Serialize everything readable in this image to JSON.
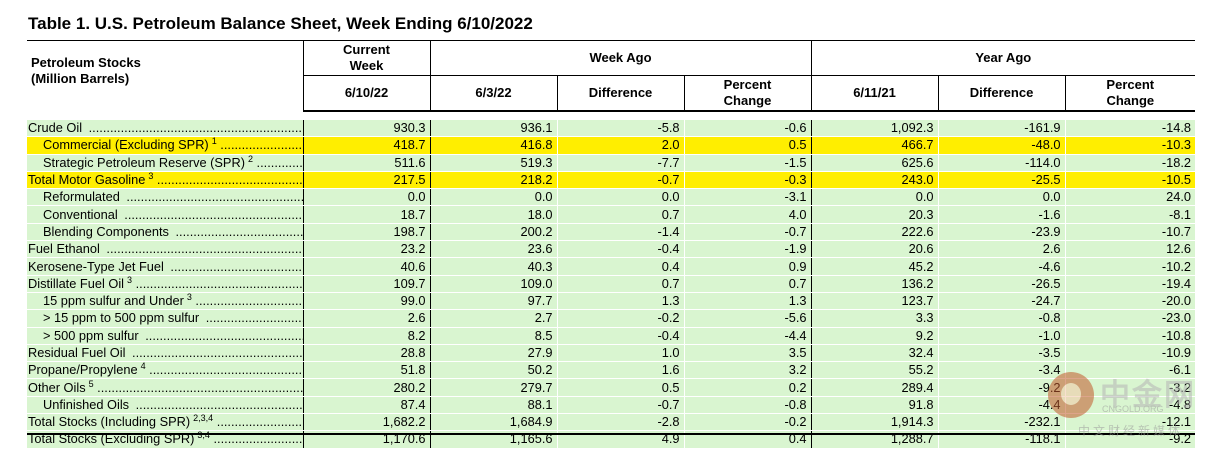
{
  "title": "Table 1.  U.S. Petroleum Balance Sheet, Week Ending 6/10/2022",
  "header": {
    "stub_line1": "Petroleum Stocks",
    "stub_line2": "(Million Barrels)",
    "current_week_line1": "Current",
    "current_week_line2": "Week",
    "current_week_date": "6/10/22",
    "week_ago": "Week Ago",
    "week_ago_date": "6/3/22",
    "difference": "Difference",
    "percent_line1": "Percent",
    "percent_line2": "Change",
    "year_ago": "Year Ago",
    "year_ago_date": "6/11/21"
  },
  "rows": [
    {
      "label": "Crude Oil",
      "sup": "",
      "indent": 0,
      "highlight": false,
      "values": [
        "930.3",
        "936.1",
        "-5.8",
        "-0.6",
        "1,092.3",
        "-161.9",
        "-14.8"
      ]
    },
    {
      "label": "Commercial (Excluding SPR)",
      "sup": "1",
      "indent": 1,
      "highlight": true,
      "values": [
        "418.7",
        "416.8",
        "2.0",
        "0.5",
        "466.7",
        "-48.0",
        "-10.3"
      ]
    },
    {
      "label": "Strategic Petroleum Reserve (SPR)",
      "sup": "2",
      "indent": 1,
      "highlight": false,
      "values": [
        "511.6",
        "519.3",
        "-7.7",
        "-1.5",
        "625.6",
        "-114.0",
        "-18.2"
      ]
    },
    {
      "label": "Total Motor Gasoline",
      "sup": "3",
      "indent": 0,
      "highlight": true,
      "values": [
        "217.5",
        "218.2",
        "-0.7",
        "-0.3",
        "243.0",
        "-25.5",
        "-10.5"
      ]
    },
    {
      "label": "Reformulated",
      "sup": "",
      "indent": 1,
      "highlight": false,
      "values": [
        "0.0",
        "0.0",
        "0.0",
        "-3.1",
        "0.0",
        "0.0",
        "24.0"
      ]
    },
    {
      "label": "Conventional",
      "sup": "",
      "indent": 1,
      "highlight": false,
      "values": [
        "18.7",
        "18.0",
        "0.7",
        "4.0",
        "20.3",
        "-1.6",
        "-8.1"
      ]
    },
    {
      "label": "Blending Components",
      "sup": "",
      "indent": 1,
      "highlight": false,
      "values": [
        "198.7",
        "200.2",
        "-1.4",
        "-0.7",
        "222.6",
        "-23.9",
        "-10.7"
      ]
    },
    {
      "label": "Fuel Ethanol",
      "sup": "",
      "indent": 0,
      "highlight": false,
      "values": [
        "23.2",
        "23.6",
        "-0.4",
        "-1.9",
        "20.6",
        "2.6",
        "12.6"
      ]
    },
    {
      "label": "Kerosene-Type Jet Fuel",
      "sup": "",
      "indent": 0,
      "highlight": false,
      "values": [
        "40.6",
        "40.3",
        "0.4",
        "0.9",
        "45.2",
        "-4.6",
        "-10.2"
      ]
    },
    {
      "label": "Distillate Fuel Oil",
      "sup": "3",
      "indent": 0,
      "highlight": false,
      "values": [
        "109.7",
        "109.0",
        "0.7",
        "0.7",
        "136.2",
        "-26.5",
        "-19.4"
      ]
    },
    {
      "label": "15 ppm sulfur and Under",
      "sup": "3",
      "indent": 1,
      "highlight": false,
      "values": [
        "99.0",
        "97.7",
        "1.3",
        "1.3",
        "123.7",
        "-24.7",
        "-20.0"
      ]
    },
    {
      "label": "> 15 ppm to 500 ppm sulfur",
      "sup": "",
      "indent": 1,
      "highlight": false,
      "values": [
        "2.6",
        "2.7",
        "-0.2",
        "-5.6",
        "3.3",
        "-0.8",
        "-23.0"
      ]
    },
    {
      "label": "> 500 ppm sulfur",
      "sup": "",
      "indent": 1,
      "highlight": false,
      "values": [
        "8.2",
        "8.5",
        "-0.4",
        "-4.4",
        "9.2",
        "-1.0",
        "-10.8"
      ]
    },
    {
      "label": "Residual Fuel Oil",
      "sup": "",
      "indent": 0,
      "highlight": false,
      "values": [
        "28.8",
        "27.9",
        "1.0",
        "3.5",
        "32.4",
        "-3.5",
        "-10.9"
      ]
    },
    {
      "label": "Propane/Propylene",
      "sup": "4",
      "indent": 0,
      "highlight": false,
      "values": [
        "51.8",
        "50.2",
        "1.6",
        "3.2",
        "55.2",
        "-3.4",
        "-6.1"
      ]
    },
    {
      "label": "Other Oils",
      "sup": "5",
      "indent": 0,
      "highlight": false,
      "values": [
        "280.2",
        "279.7",
        "0.5",
        "0.2",
        "289.4",
        "-9.2",
        "-3.2"
      ]
    },
    {
      "label": "Unfinished Oils",
      "sup": "",
      "indent": 1,
      "highlight": false,
      "values": [
        "87.4",
        "88.1",
        "-0.7",
        "-0.8",
        "91.8",
        "-4.4",
        "-4.8"
      ]
    },
    {
      "label": "Total Stocks (Including SPR)",
      "sup": "2,3,4",
      "indent": 0,
      "highlight": false,
      "values": [
        "1,682.2",
        "1,684.9",
        "-2.8",
        "-0.2",
        "1,914.3",
        "-232.1",
        "-12.1"
      ]
    },
    {
      "label": "Total Stocks (Excluding SPR)",
      "sup": "3,4",
      "indent": 0,
      "highlight": false,
      "values": [
        "1,170.6",
        "1,165.6",
        "4.9",
        "0.4",
        "1,288.7",
        "-118.1",
        "-9.2"
      ]
    }
  ],
  "watermark": {
    "brand": "中金网",
    "domain": "CNGOLD.ORG",
    "tagline": "中文财经新媒体"
  },
  "colors": {
    "row_fill": "#d9f5d0",
    "highlight": "#ffee00"
  }
}
